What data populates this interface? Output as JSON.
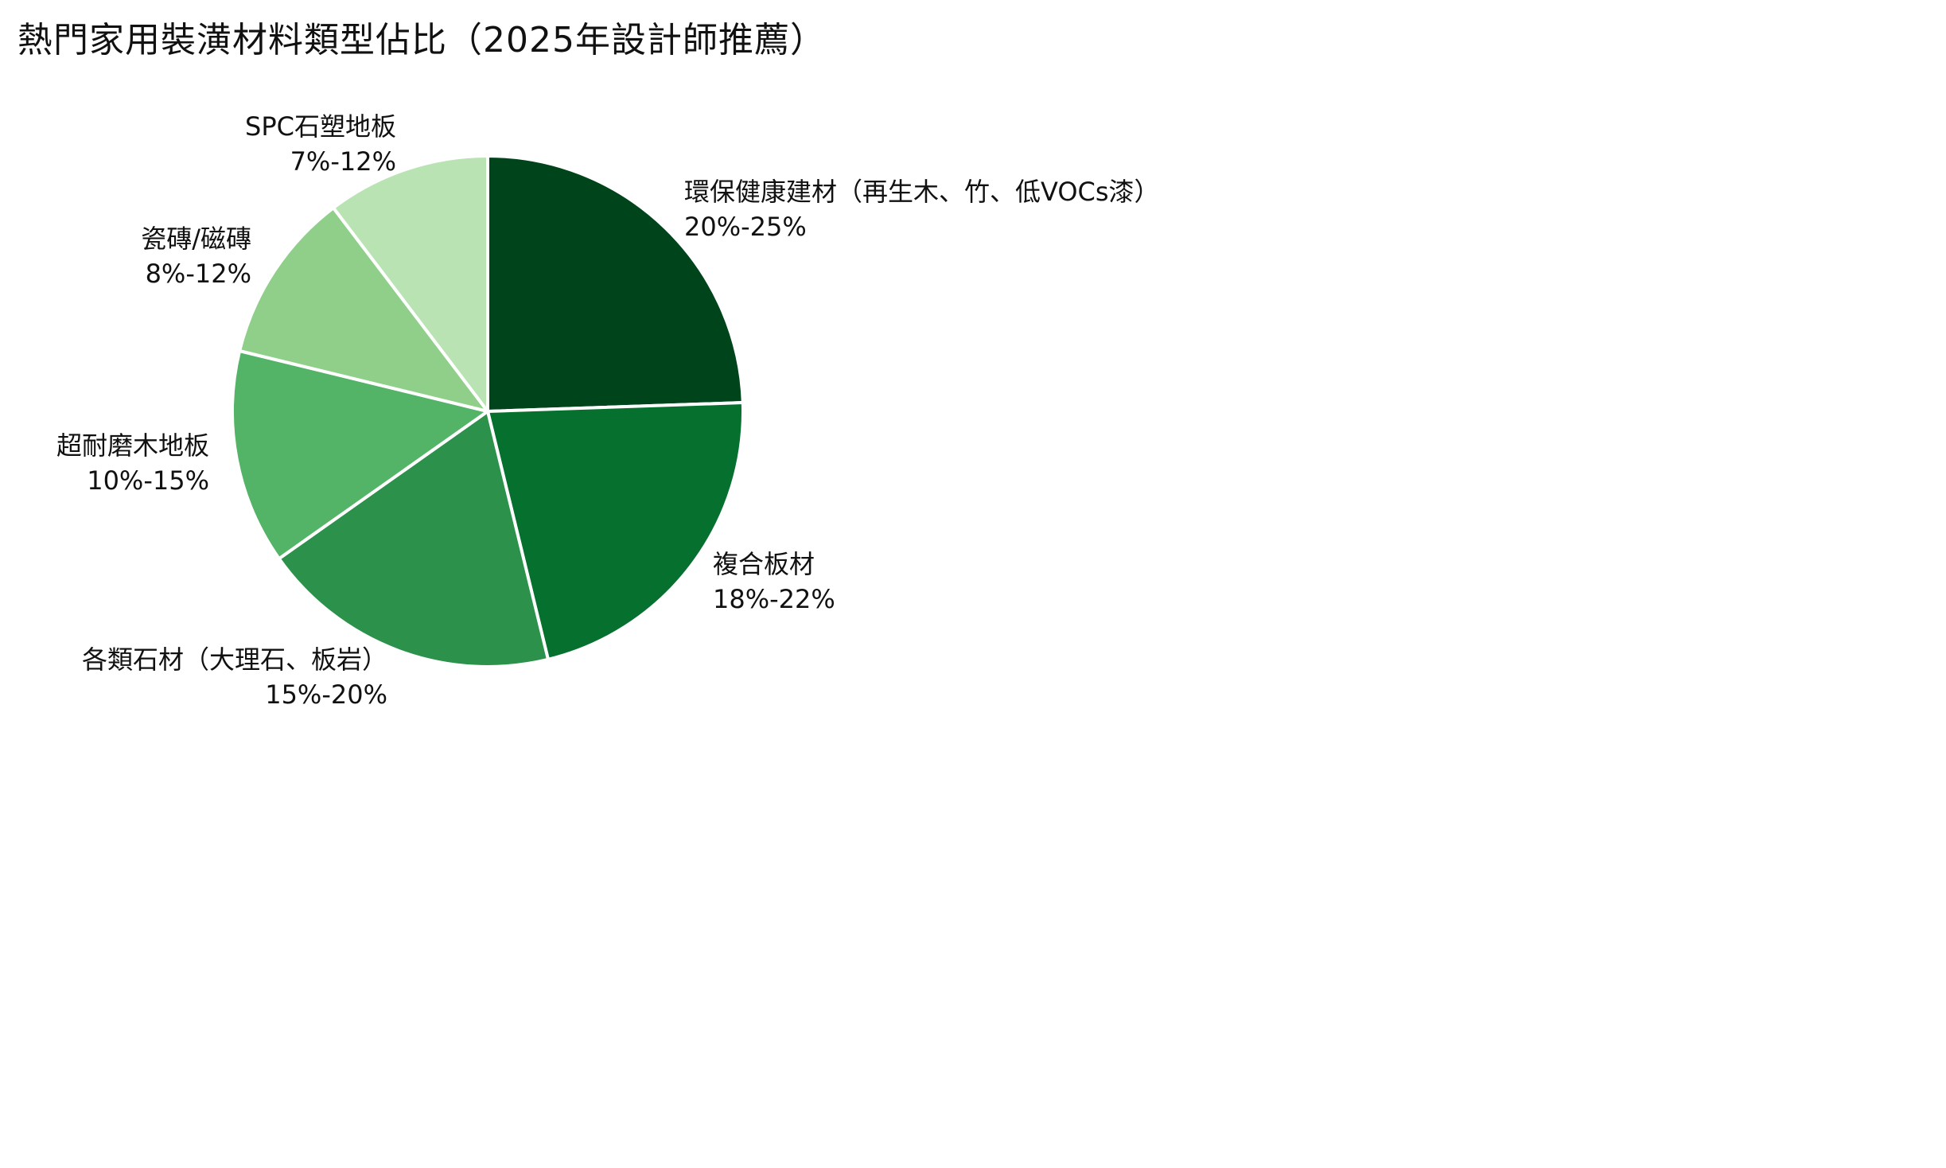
{
  "chart_data": {
    "type": "pie",
    "title": "熱門家用裝潢材料類型佔比（2025年設計師推薦）",
    "slices": [
      {
        "name": "環保健康建材（再生木、竹、低VOCs漆）",
        "range_label": "20%-25%",
        "value": 22.5,
        "color": "#00441b"
      },
      {
        "name": "複合板材",
        "range_label": "18%-22%",
        "value": 20,
        "color": "#06702f"
      },
      {
        "name": "各類石材（大理石、板岩）",
        "range_label": "15%-20%",
        "value": 17.5,
        "color": "#2c924b"
      },
      {
        "name": "超耐磨木地板",
        "range_label": "10%-15%",
        "value": 12.5,
        "color": "#53b366"
      },
      {
        "name": "瓷磚/磁磚",
        "range_label": "8%-12%",
        "value": 10,
        "color": "#8fcf89"
      },
      {
        "name": "SPC石塑地板",
        "range_label": "7%-12%",
        "value": 9.5,
        "color": "#b9e3b3"
      }
    ],
    "start_angle": "12 o'clock",
    "direction": "clockwise",
    "legend": "none"
  }
}
